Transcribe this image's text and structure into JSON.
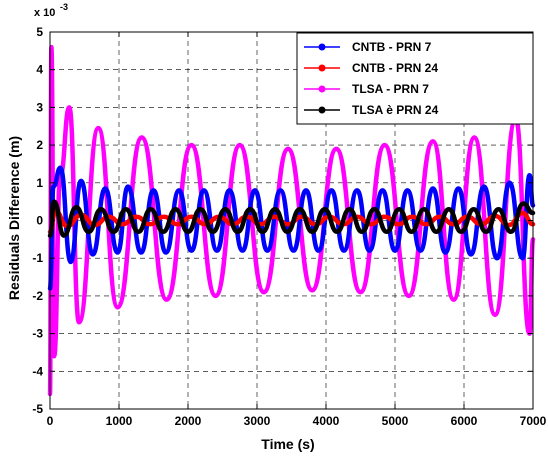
{
  "chart_data": {
    "type": "line",
    "title": "",
    "xlabel": "Time (s)",
    "ylabel": "Residuals Difference (m)",
    "y_multiplier_base": "x 10",
    "y_multiplier_exp": "-3",
    "xlim": [
      0,
      7000
    ],
    "ylim": [
      -5,
      5
    ],
    "x_ticks": [
      0,
      1000,
      2000,
      3000,
      4000,
      5000,
      6000,
      7000
    ],
    "y_ticks": [
      -5,
      -4,
      -3,
      -2,
      -1,
      0,
      1,
      2,
      3,
      4,
      5
    ],
    "grid": true,
    "legend_position": "top-right",
    "series": [
      {
        "name": "CNTB - PRN 7",
        "color": "#0000ff",
        "points": [
          [
            0,
            -1.8
          ],
          [
            50,
            0.9
          ],
          [
            150,
            1.4
          ],
          [
            300,
            -1.1
          ],
          [
            450,
            1.05
          ],
          [
            620,
            -0.9
          ],
          [
            800,
            0.85
          ],
          [
            980,
            -0.85
          ],
          [
            1130,
            0.9
          ],
          [
            1320,
            -0.85
          ],
          [
            1500,
            0.8
          ],
          [
            1680,
            -0.85
          ],
          [
            1870,
            0.8
          ],
          [
            2050,
            -0.8
          ],
          [
            2230,
            0.8
          ],
          [
            2420,
            -0.8
          ],
          [
            2600,
            0.8
          ],
          [
            2790,
            -0.8
          ],
          [
            2970,
            0.8
          ],
          [
            3150,
            -0.8
          ],
          [
            3340,
            0.8
          ],
          [
            3530,
            -0.8
          ],
          [
            3710,
            0.8
          ],
          [
            3890,
            -0.8
          ],
          [
            4080,
            0.8
          ],
          [
            4260,
            -0.8
          ],
          [
            4450,
            0.8
          ],
          [
            4630,
            -0.8
          ],
          [
            4820,
            0.8
          ],
          [
            5000,
            -0.8
          ],
          [
            5180,
            0.8
          ],
          [
            5370,
            -0.8
          ],
          [
            5550,
            0.85
          ],
          [
            5730,
            -0.85
          ],
          [
            5920,
            0.85
          ],
          [
            6100,
            -0.9
          ],
          [
            6290,
            0.9
          ],
          [
            6480,
            -1.0
          ],
          [
            6660,
            1.0
          ],
          [
            6850,
            -1.0
          ],
          [
            6950,
            1.2
          ],
          [
            7000,
            0.4
          ]
        ]
      },
      {
        "name": "CNTB - PRN 24",
        "color": "#ff0000",
        "points": [
          [
            0,
            -0.3
          ],
          [
            80,
            0.25
          ],
          [
            250,
            -0.15
          ],
          [
            450,
            0.15
          ],
          [
            650,
            -0.12
          ],
          [
            850,
            0.1
          ],
          [
            1050,
            -0.1
          ],
          [
            1250,
            0.1
          ],
          [
            1450,
            -0.1
          ],
          [
            1650,
            0.1
          ],
          [
            1850,
            -0.1
          ],
          [
            2050,
            0.1
          ],
          [
            2250,
            -0.1
          ],
          [
            2450,
            0.1
          ],
          [
            2650,
            -0.1
          ],
          [
            2850,
            0.1
          ],
          [
            3050,
            -0.1
          ],
          [
            3250,
            0.1
          ],
          [
            3450,
            -0.1
          ],
          [
            3650,
            0.1
          ],
          [
            3850,
            -0.1
          ],
          [
            4050,
            0.1
          ],
          [
            4250,
            -0.1
          ],
          [
            4450,
            0.1
          ],
          [
            4650,
            -0.1
          ],
          [
            4850,
            0.1
          ],
          [
            5050,
            -0.1
          ],
          [
            5250,
            0.1
          ],
          [
            5450,
            -0.1
          ],
          [
            5650,
            0.1
          ],
          [
            5850,
            -0.1
          ],
          [
            6050,
            0.1
          ],
          [
            6250,
            -0.1
          ],
          [
            6450,
            0.12
          ],
          [
            6650,
            -0.12
          ],
          [
            6850,
            0.2
          ],
          [
            7000,
            -0.1
          ]
        ]
      },
      {
        "name": "TLSA - PRN 7",
        "color": "#ff00ff",
        "points": [
          [
            0,
            -4.6
          ],
          [
            20,
            4.6
          ],
          [
            60,
            -3.6
          ],
          [
            150,
            1.2
          ],
          [
            280,
            3.0
          ],
          [
            420,
            -2.7
          ],
          [
            700,
            2.45
          ],
          [
            980,
            -2.3
          ],
          [
            1330,
            2.2
          ],
          [
            1690,
            -2.1
          ],
          [
            2050,
            2.0
          ],
          [
            2400,
            -2.0
          ],
          [
            2750,
            2.0
          ],
          [
            3100,
            -1.9
          ],
          [
            3450,
            1.9
          ],
          [
            3800,
            -1.85
          ],
          [
            4150,
            1.9
          ],
          [
            4500,
            -1.9
          ],
          [
            4850,
            2.0
          ],
          [
            5200,
            -2.0
          ],
          [
            5550,
            2.1
          ],
          [
            5850,
            -2.1
          ],
          [
            6150,
            2.2
          ],
          [
            6450,
            -2.5
          ],
          [
            6750,
            2.7
          ],
          [
            6950,
            -3.0
          ],
          [
            7000,
            -0.5
          ]
        ]
      },
      {
        "name": "TLSA è PRN 24",
        "color": "#000000",
        "points": [
          [
            0,
            -0.4
          ],
          [
            60,
            0.5
          ],
          [
            200,
            -0.4
          ],
          [
            380,
            0.35
          ],
          [
            560,
            -0.3
          ],
          [
            740,
            0.3
          ],
          [
            920,
            -0.3
          ],
          [
            1100,
            0.3
          ],
          [
            1280,
            -0.3
          ],
          [
            1460,
            0.3
          ],
          [
            1640,
            -0.3
          ],
          [
            1820,
            0.3
          ],
          [
            2000,
            -0.3
          ],
          [
            2180,
            0.3
          ],
          [
            2360,
            -0.3
          ],
          [
            2540,
            0.3
          ],
          [
            2720,
            -0.3
          ],
          [
            2900,
            0.3
          ],
          [
            3080,
            -0.3
          ],
          [
            3260,
            0.3
          ],
          [
            3440,
            -0.3
          ],
          [
            3620,
            0.3
          ],
          [
            3800,
            -0.3
          ],
          [
            3980,
            0.3
          ],
          [
            4160,
            -0.3
          ],
          [
            4340,
            0.3
          ],
          [
            4520,
            -0.3
          ],
          [
            4700,
            0.3
          ],
          [
            4880,
            -0.3
          ],
          [
            5060,
            0.3
          ],
          [
            5240,
            -0.3
          ],
          [
            5420,
            0.3
          ],
          [
            5600,
            -0.3
          ],
          [
            5780,
            0.3
          ],
          [
            5960,
            -0.3
          ],
          [
            6140,
            0.3
          ],
          [
            6320,
            -0.3
          ],
          [
            6500,
            0.3
          ],
          [
            6680,
            -0.3
          ],
          [
            6860,
            0.45
          ],
          [
            7000,
            0.2
          ]
        ]
      }
    ]
  }
}
